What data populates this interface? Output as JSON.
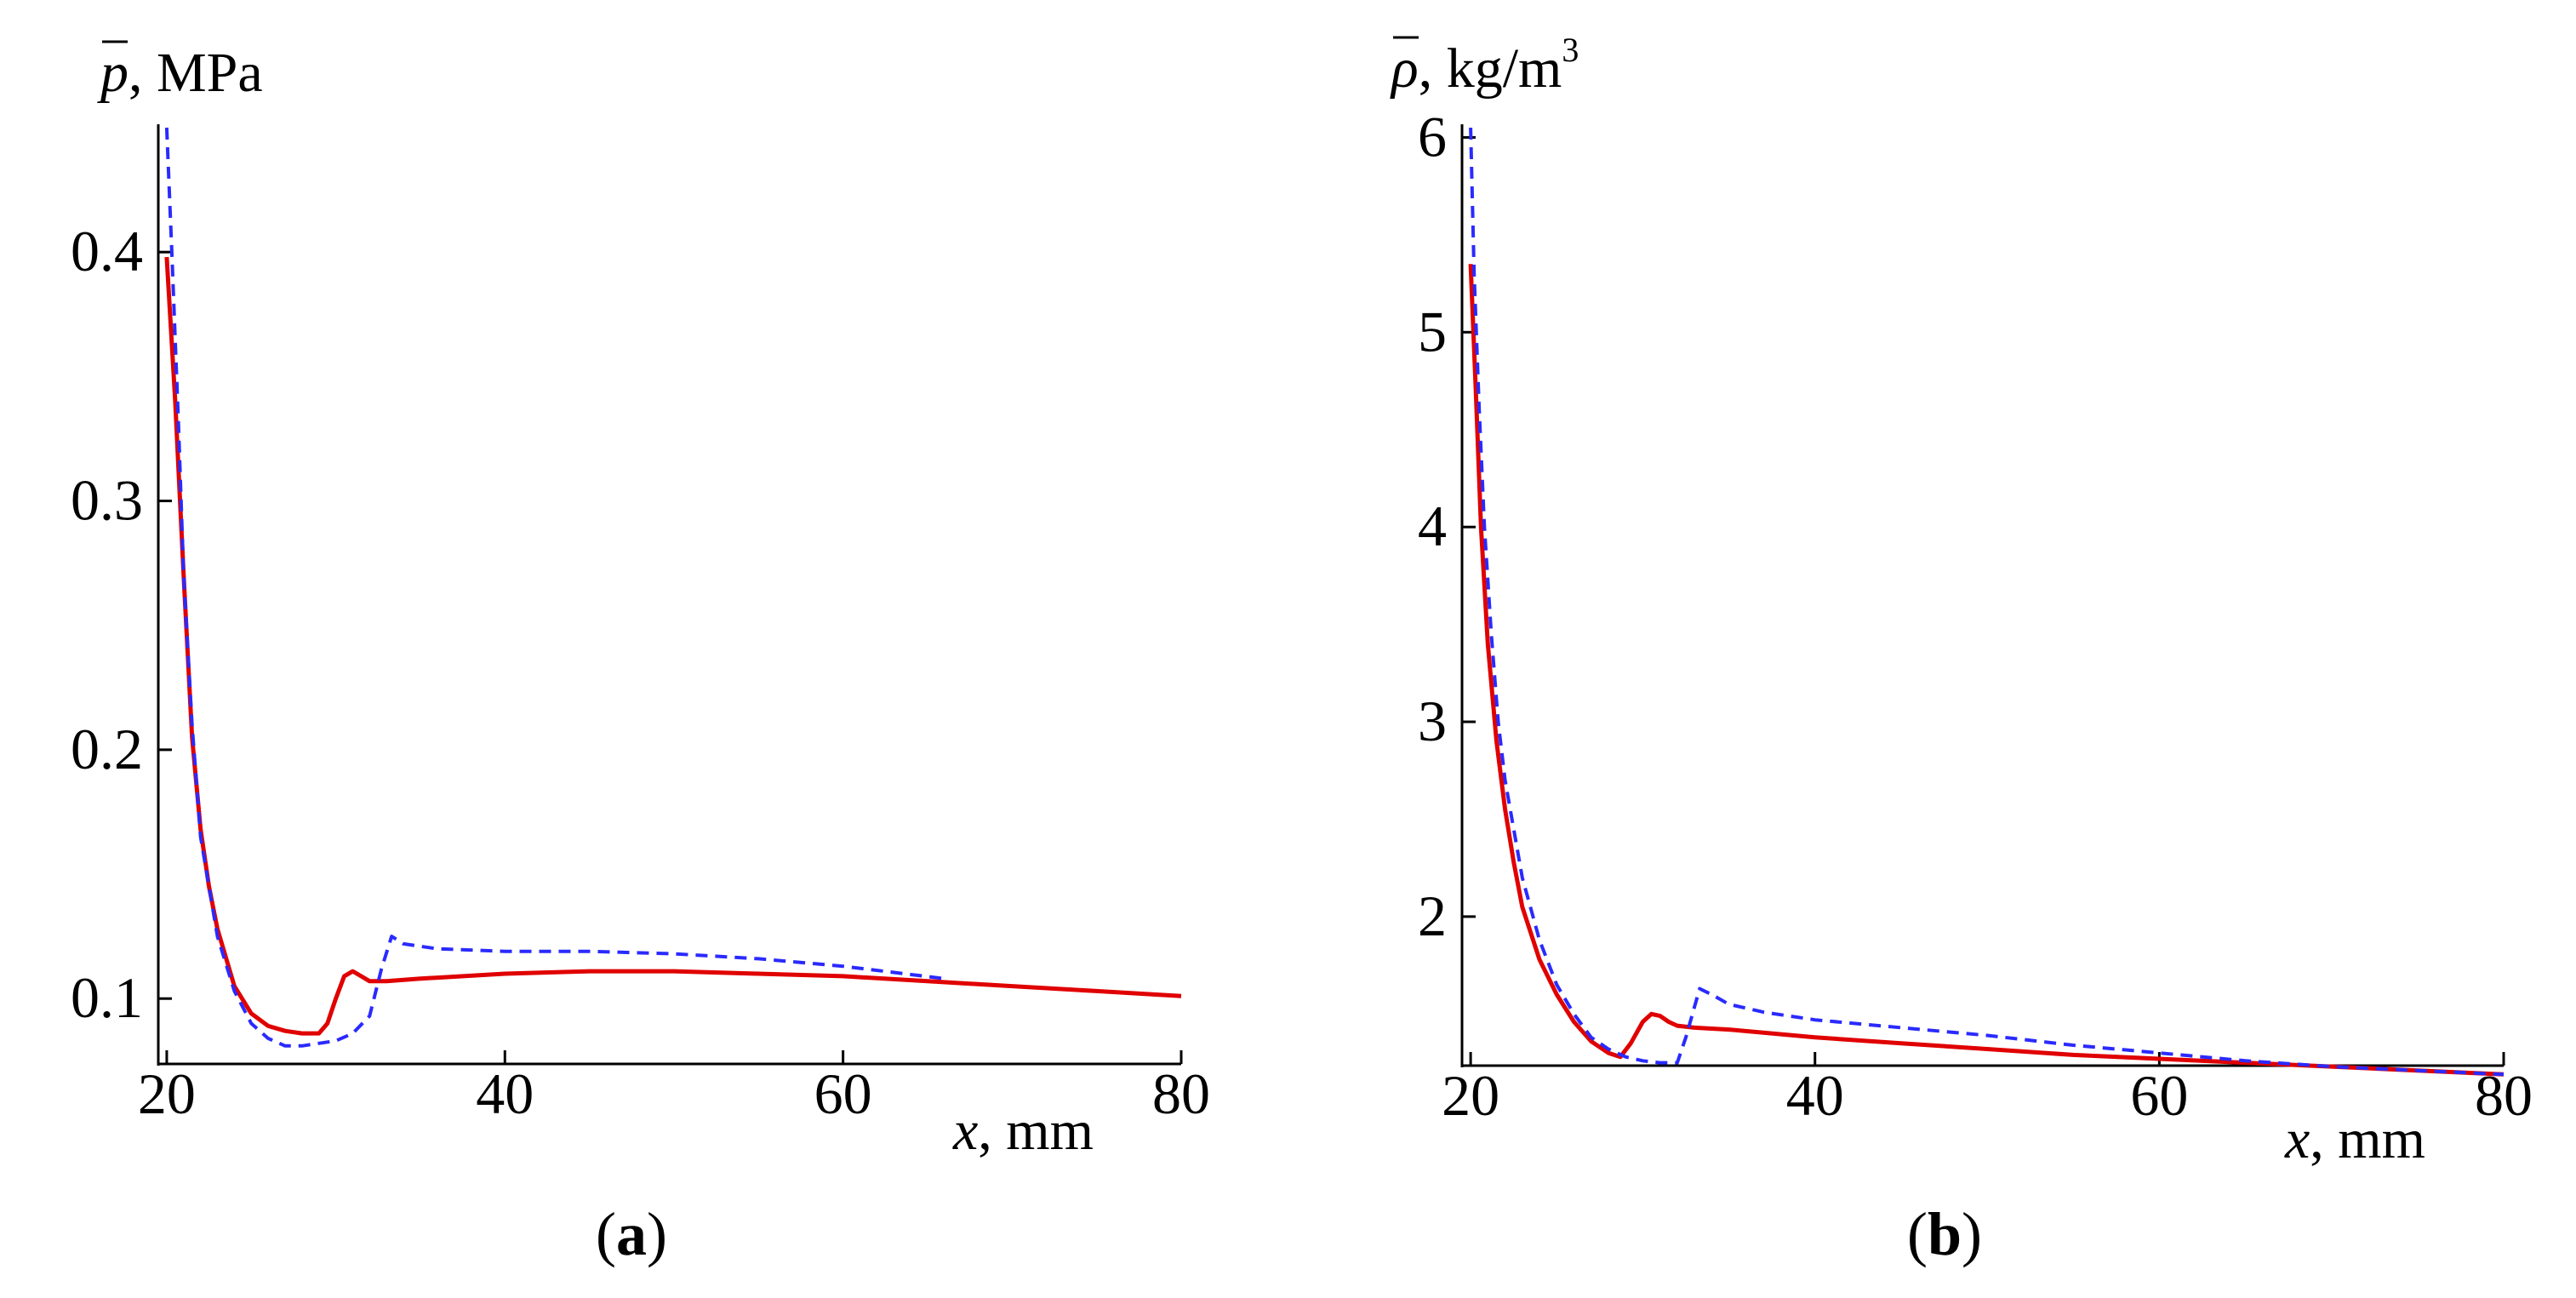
{
  "chart_data": [
    {
      "type": "line",
      "panel": "a",
      "panel_label": "a",
      "ylabel_symbol": "p",
      "ylabel_unit": ", MPa",
      "xlabel_symbol": "x",
      "xlabel_unit": ", mm",
      "xlim": [
        19.5,
        80
      ],
      "ylim": [
        0.071,
        0.45
      ],
      "xticks": [
        20,
        40,
        60,
        80
      ],
      "xtick_labels": [
        "20",
        "40",
        "60",
        "80"
      ],
      "yticks": [
        0.1,
        0.2,
        0.3,
        0.4
      ],
      "ytick_labels": [
        "0.1",
        "0.2",
        "0.3",
        "0.4"
      ],
      "series": [
        {
          "name": "solid",
          "color": "#e00000",
          "style": "solid",
          "x": [
            20,
            20.5,
            21,
            21.5,
            22,
            22.5,
            23,
            24,
            25,
            26,
            27,
            28,
            29,
            29.5,
            30,
            30.5,
            31,
            31.5,
            32,
            33,
            35,
            40,
            45,
            50,
            55,
            60,
            65,
            70,
            75,
            80
          ],
          "y": [
            0.398,
            0.34,
            0.27,
            0.205,
            0.168,
            0.145,
            0.128,
            0.105,
            0.094,
            0.089,
            0.087,
            0.086,
            0.086,
            0.09,
            0.1,
            0.109,
            0.111,
            0.109,
            0.107,
            0.107,
            0.108,
            0.11,
            0.111,
            0.111,
            0.11,
            0.109,
            0.107,
            0.105,
            0.103,
            0.101
          ]
        },
        {
          "name": "dashed",
          "color": "#2a2aff",
          "style": "dashed",
          "x": [
            20,
            20.3,
            20.7,
            21,
            21.5,
            22,
            23,
            24,
            25,
            26,
            27,
            28,
            29,
            30,
            31,
            32,
            32.7,
            33.3,
            34,
            36,
            40,
            45,
            50,
            55,
            60,
            66
          ],
          "y": [
            0.45,
            0.4,
            0.33,
            0.27,
            0.21,
            0.165,
            0.125,
            0.103,
            0.09,
            0.084,
            0.081,
            0.081,
            0.082,
            0.083,
            0.086,
            0.093,
            0.112,
            0.125,
            0.122,
            0.12,
            0.119,
            0.119,
            0.118,
            0.116,
            0.113,
            0.108
          ]
        }
      ]
    },
    {
      "type": "line",
      "panel": "b",
      "panel_label": "b",
      "ylabel_symbol": "ρ",
      "ylabel_unit": ", kg/m",
      "ylabel_sup": "3",
      "xlabel_symbol": "x",
      "xlabel_unit": ", mm",
      "xlim": [
        19.5,
        80
      ],
      "ylim": [
        1.2,
        6.05
      ],
      "xticks": [
        20,
        40,
        60,
        80
      ],
      "xtick_labels": [
        "20",
        "40",
        "60",
        "80"
      ],
      "yticks": [
        2,
        3,
        4,
        5,
        6
      ],
      "ytick_labels": [
        "2",
        "3",
        "4",
        "5",
        "6"
      ],
      "series": [
        {
          "name": "solid",
          "color": "#e00000",
          "style": "solid",
          "x": [
            20,
            20.3,
            20.6,
            21,
            21.5,
            22,
            22.5,
            23,
            24,
            25,
            26,
            27,
            28,
            28.7,
            29.3,
            30,
            30.5,
            31,
            31.5,
            32,
            33,
            35,
            40,
            45,
            50,
            55,
            60,
            65,
            70,
            75,
            80
          ],
          "y": [
            5.35,
            4.7,
            4.0,
            3.4,
            2.9,
            2.55,
            2.28,
            2.05,
            1.78,
            1.6,
            1.46,
            1.36,
            1.3,
            1.28,
            1.35,
            1.46,
            1.5,
            1.49,
            1.46,
            1.44,
            1.43,
            1.42,
            1.38,
            1.35,
            1.32,
            1.29,
            1.27,
            1.25,
            1.23,
            1.21,
            1.19
          ]
        },
        {
          "name": "dashed",
          "color": "#2a2aff",
          "style": "dashed",
          "x": [
            20,
            20.2,
            20.5,
            20.8,
            21.2,
            21.6,
            22,
            22.5,
            23,
            24,
            25,
            26,
            27,
            28,
            29,
            30,
            31,
            32,
            32.5,
            33.3,
            34,
            35,
            37,
            40,
            45,
            50,
            55,
            60,
            65,
            70,
            75,
            80
          ],
          "y": [
            6.1,
            5.3,
            4.6,
            4.0,
            3.45,
            3.0,
            2.7,
            2.45,
            2.2,
            1.88,
            1.65,
            1.5,
            1.38,
            1.32,
            1.28,
            1.26,
            1.25,
            1.25,
            1.38,
            1.63,
            1.6,
            1.55,
            1.51,
            1.47,
            1.43,
            1.39,
            1.34,
            1.3,
            1.26,
            1.23,
            1.21,
            1.19
          ]
        }
      ]
    }
  ]
}
